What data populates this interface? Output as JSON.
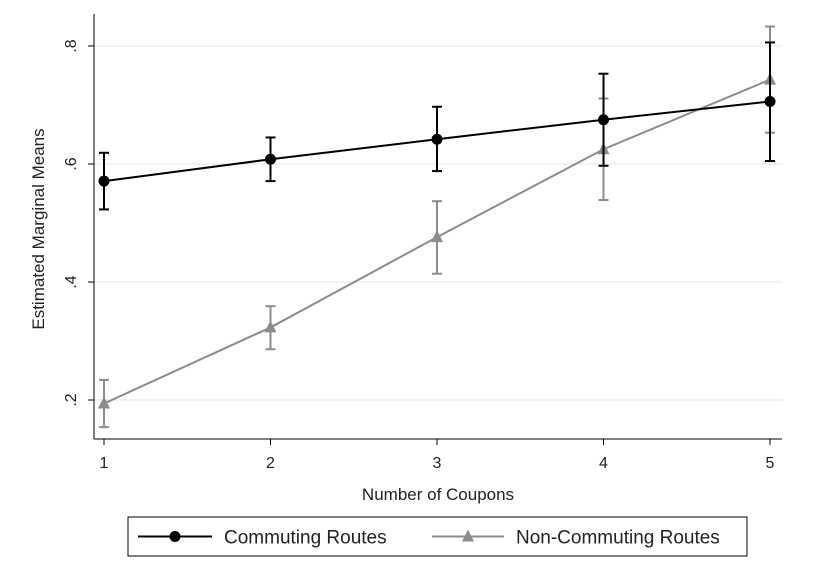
{
  "chart_data": {
    "type": "line",
    "title": "",
    "xlabel": "Number of Coupons",
    "ylabel": "Estimated Marginal Means",
    "x": [
      1,
      2,
      3,
      4,
      5
    ],
    "x_tick_labels": [
      "1",
      "2",
      "3",
      "4",
      "5"
    ],
    "xlim": [
      1,
      5
    ],
    "y_ticks": [
      0.2,
      0.4,
      0.6,
      0.8
    ],
    "y_tick_labels": [
      ".2",
      ".4",
      ".6",
      ".8"
    ],
    "ylim": [
      0.14,
      0.86
    ],
    "grid": "horizontal",
    "legend_position": "bottom",
    "series": [
      {
        "name": "Commuting Routes",
        "marker": "circle",
        "color": "#000000",
        "values": [
          0.571,
          0.608,
          0.642,
          0.675,
          0.706
        ],
        "ci_low": [
          0.523,
          0.571,
          0.588,
          0.597,
          0.605
        ],
        "ci_high": [
          0.619,
          0.645,
          0.697,
          0.753,
          0.806
        ]
      },
      {
        "name": "Non-Commuting Routes",
        "marker": "triangle",
        "color": "#8c8c8c",
        "values": [
          0.194,
          0.323,
          0.476,
          0.625,
          0.743
        ],
        "ci_low": [
          0.154,
          0.286,
          0.414,
          0.539,
          0.653
        ],
        "ci_high": [
          0.234,
          0.359,
          0.537,
          0.711,
          0.833
        ]
      }
    ]
  }
}
